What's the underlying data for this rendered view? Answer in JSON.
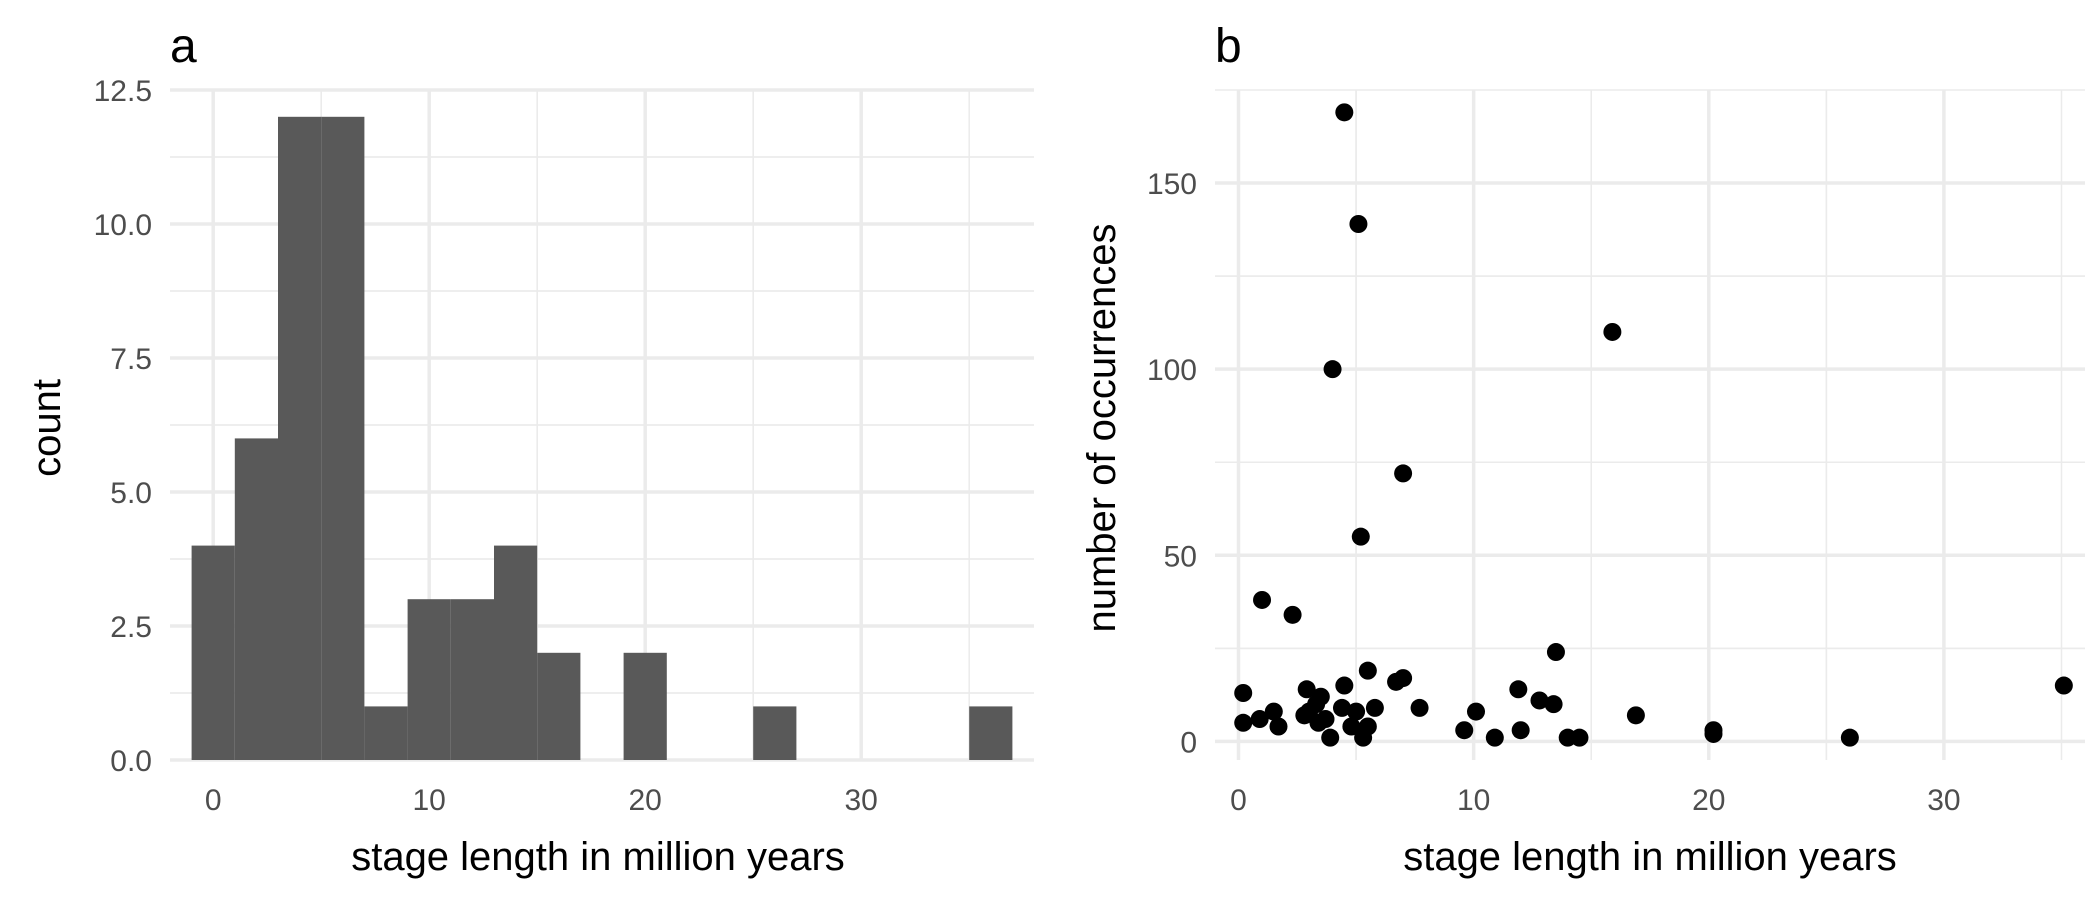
{
  "chart_data": [
    {
      "type": "bar",
      "subtype": "histogram",
      "tag": "a",
      "xlabel": "stage length in million years",
      "ylabel": "count",
      "xlim": [
        -2,
        38
      ],
      "ylim": [
        0,
        12.5
      ],
      "xticks": [
        0,
        10,
        20,
        30
      ],
      "xtick_labels": [
        "0",
        "10",
        "20",
        "30"
      ],
      "yticks": [
        0,
        2.5,
        5,
        7.5,
        10,
        12.5
      ],
      "ytick_labels": [
        "0.0",
        "2.5",
        "5.0",
        "7.5",
        "10.0",
        "12.5"
      ],
      "bins": [
        {
          "x0": -1,
          "x1": 1,
          "count": 4
        },
        {
          "x0": 1,
          "x1": 3,
          "count": 6
        },
        {
          "x0": 3,
          "x1": 5,
          "count": 12
        },
        {
          "x0": 5,
          "x1": 7,
          "count": 12
        },
        {
          "x0": 7,
          "x1": 9,
          "count": 1
        },
        {
          "x0": 9,
          "x1": 11,
          "count": 3
        },
        {
          "x0": 11,
          "x1": 13,
          "count": 3
        },
        {
          "x0": 13,
          "x1": 15,
          "count": 4
        },
        {
          "x0": 15,
          "x1": 17,
          "count": 2
        },
        {
          "x0": 17,
          "x1": 19,
          "count": 0
        },
        {
          "x0": 19,
          "x1": 21,
          "count": 2
        },
        {
          "x0": 21,
          "x1": 23,
          "count": 0
        },
        {
          "x0": 23,
          "x1": 25,
          "count": 0
        },
        {
          "x0": 25,
          "x1": 27,
          "count": 1
        },
        {
          "x0": 27,
          "x1": 29,
          "count": 0
        },
        {
          "x0": 29,
          "x1": 31,
          "count": 0
        },
        {
          "x0": 31,
          "x1": 33,
          "count": 0
        },
        {
          "x0": 33,
          "x1": 35,
          "count": 0
        },
        {
          "x0": 35,
          "x1": 37,
          "count": 1
        }
      ],
      "bar_color": "#595959",
      "grid": true
    },
    {
      "type": "scatter",
      "tag": "b",
      "xlabel": "stage length in million years",
      "ylabel": "number of occurrences",
      "xlim": [
        -1,
        36
      ],
      "ylim": [
        -5,
        175
      ],
      "xticks": [
        0,
        10,
        20,
        30
      ],
      "xtick_labels": [
        "0",
        "10",
        "20",
        "30"
      ],
      "yticks": [
        0,
        50,
        100,
        150
      ],
      "ytick_labels": [
        "0",
        "50",
        "100",
        "150"
      ],
      "point_color": "#000000",
      "grid": true,
      "points": [
        {
          "x": 4.5,
          "y": 169
        },
        {
          "x": 5.1,
          "y": 139
        },
        {
          "x": 15.9,
          "y": 110
        },
        {
          "x": 4.0,
          "y": 100
        },
        {
          "x": 7.0,
          "y": 72
        },
        {
          "x": 5.2,
          "y": 55
        },
        {
          "x": 1.0,
          "y": 38
        },
        {
          "x": 2.3,
          "y": 34
        },
        {
          "x": 13.5,
          "y": 24
        },
        {
          "x": 5.5,
          "y": 19
        },
        {
          "x": 7.0,
          "y": 17
        },
        {
          "x": 6.7,
          "y": 16
        },
        {
          "x": 4.5,
          "y": 15
        },
        {
          "x": 35.1,
          "y": 15
        },
        {
          "x": 0.2,
          "y": 13
        },
        {
          "x": 2.9,
          "y": 14
        },
        {
          "x": 11.9,
          "y": 14
        },
        {
          "x": 3.5,
          "y": 12
        },
        {
          "x": 12.8,
          "y": 11
        },
        {
          "x": 3.3,
          "y": 10
        },
        {
          "x": 13.4,
          "y": 10
        },
        {
          "x": 4.4,
          "y": 9
        },
        {
          "x": 5.8,
          "y": 9
        },
        {
          "x": 7.7,
          "y": 9
        },
        {
          "x": 1.5,
          "y": 8
        },
        {
          "x": 3.0,
          "y": 8
        },
        {
          "x": 5.0,
          "y": 8
        },
        {
          "x": 10.1,
          "y": 8
        },
        {
          "x": 2.8,
          "y": 7
        },
        {
          "x": 16.9,
          "y": 7
        },
        {
          "x": 0.9,
          "y": 6
        },
        {
          "x": 3.7,
          "y": 6
        },
        {
          "x": 0.2,
          "y": 5
        },
        {
          "x": 3.4,
          "y": 5
        },
        {
          "x": 1.7,
          "y": 4
        },
        {
          "x": 4.8,
          "y": 4
        },
        {
          "x": 5.5,
          "y": 4
        },
        {
          "x": 9.6,
          "y": 3
        },
        {
          "x": 12.0,
          "y": 3
        },
        {
          "x": 20.2,
          "y": 3
        },
        {
          "x": 3.9,
          "y": 1
        },
        {
          "x": 5.3,
          "y": 1
        },
        {
          "x": 10.9,
          "y": 1
        },
        {
          "x": 14.0,
          "y": 1
        },
        {
          "x": 14.5,
          "y": 1
        },
        {
          "x": 20.2,
          "y": 2
        },
        {
          "x": 26.0,
          "y": 1
        }
      ]
    }
  ]
}
